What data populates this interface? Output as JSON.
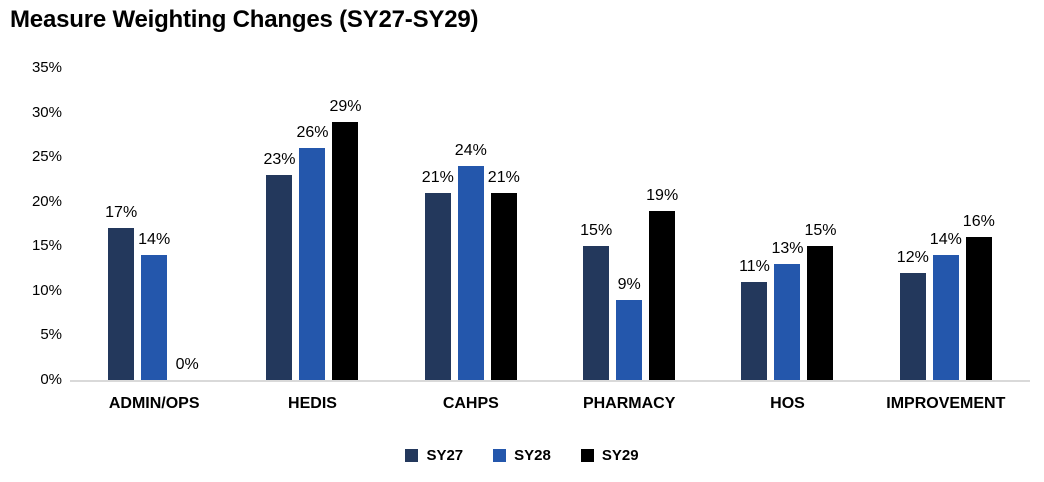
{
  "chart_data": {
    "type": "bar",
    "title": "Measure Weighting Changes (SY27-SY29)",
    "categories": [
      "ADMIN/OPS",
      "HEDIS",
      "CAHPS",
      "PHARMACY",
      "HOS",
      "IMPROVEMENT"
    ],
    "series": [
      {
        "name": "SY27",
        "color": "#23385C",
        "values": [
          17,
          23,
          21,
          15,
          11,
          12
        ]
      },
      {
        "name": "SY28",
        "color": "#2457AC",
        "values": [
          14,
          26,
          24,
          9,
          13,
          14
        ]
      },
      {
        "name": "SY29",
        "color": "#000000",
        "values": [
          0,
          29,
          21,
          19,
          15,
          16
        ]
      }
    ],
    "value_suffix": "%",
    "data_labels": true,
    "xlabel": "",
    "ylabel": "",
    "ylim": [
      0,
      35
    ],
    "ytick_values": [
      35,
      30,
      25,
      20,
      15,
      10,
      5,
      0
    ],
    "ytick_labels": [
      "35%",
      "30%",
      "25%",
      "20%",
      "15%",
      "10%",
      "5%",
      "0%"
    ],
    "grid": false,
    "legend_position": "bottom",
    "axis_line_color": "#d9d9d9"
  }
}
